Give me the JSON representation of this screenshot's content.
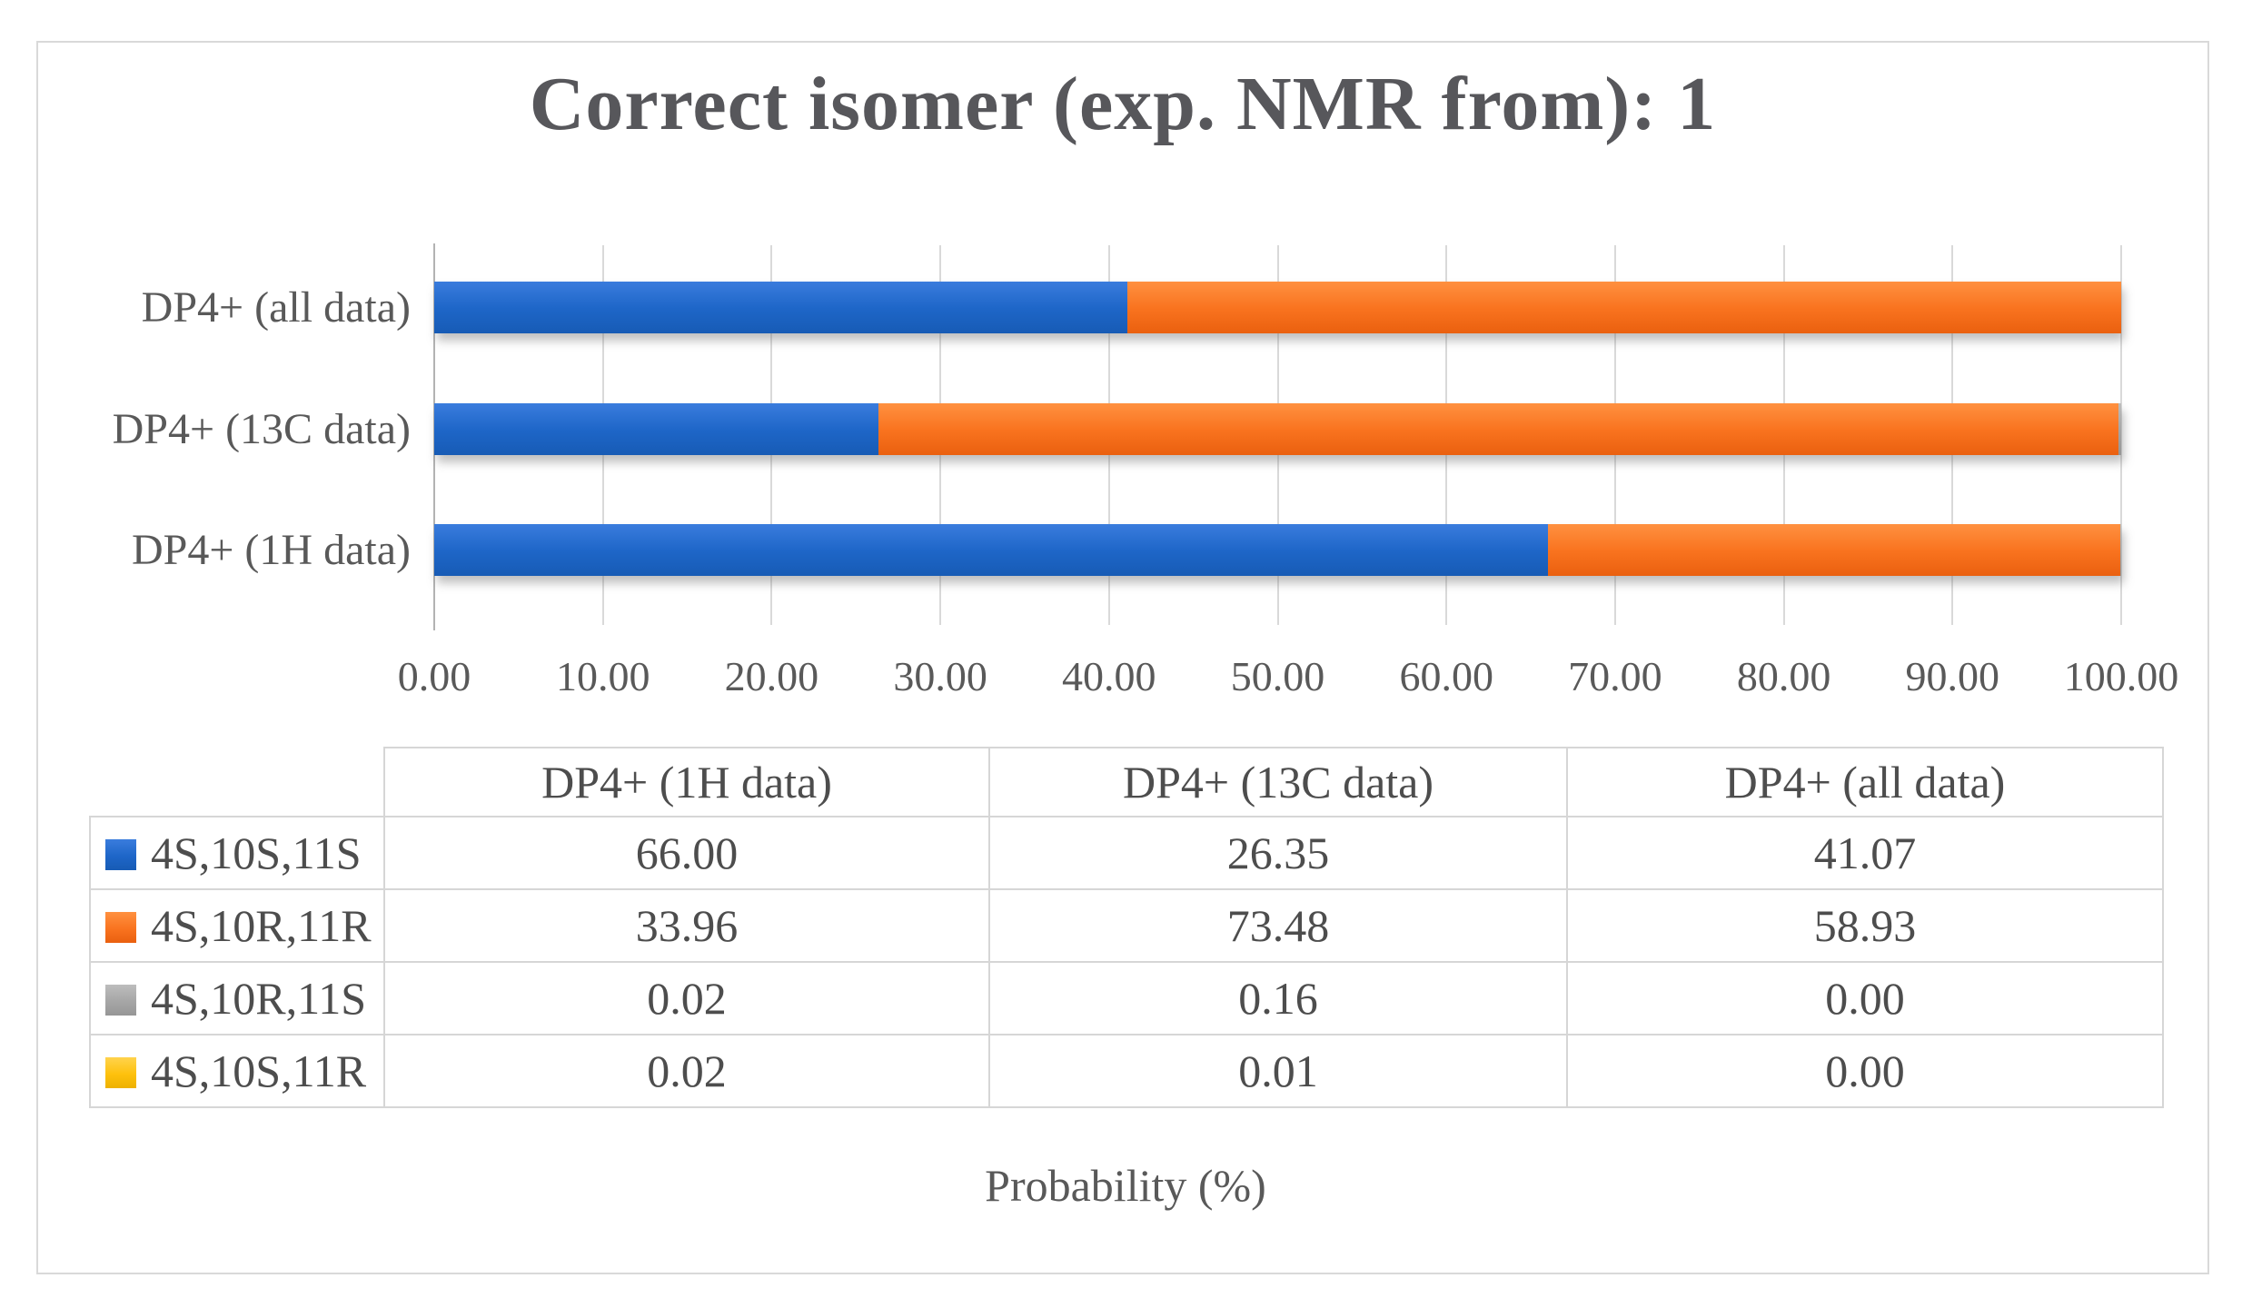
{
  "chart_data": {
    "type": "bar",
    "stacked": true,
    "horizontal": true,
    "title": "Correct isomer (exp. NMR from): 1",
    "xlabel": "Probability (%)",
    "xlim": [
      0,
      100
    ],
    "grid": true,
    "legend_position": "table-left-column",
    "xticks": [
      "0.00",
      "10.00",
      "20.00",
      "30.00",
      "40.00",
      "50.00",
      "60.00",
      "70.00",
      "80.00",
      "90.00",
      "100.00"
    ],
    "categories": [
      "DP4+ (all data)",
      "DP4+ (13C data)",
      "DP4+ (1H data)"
    ],
    "columns": [
      "DP4+ (1H data)",
      "DP4+ (13C data)",
      "DP4+ (all data)"
    ],
    "series": [
      {
        "name": "4S,10S,11S",
        "color": "#1e66c8",
        "gradient": [
          "#3a7cdd",
          "#1e66c8",
          "#175bb5"
        ],
        "values": [
          66.0,
          26.35,
          41.07
        ]
      },
      {
        "name": "4S,10R,11R",
        "color": "#f9731f",
        "gradient": [
          "#ff9140",
          "#f9731f",
          "#ea600f"
        ],
        "values": [
          33.96,
          73.48,
          58.93
        ]
      },
      {
        "name": "4S,10R,11S",
        "color": "#a6a6a6",
        "gradient": [
          "#bdbdbd",
          "#a6a6a6",
          "#969696"
        ],
        "values": [
          0.02,
          0.16,
          0.0
        ]
      },
      {
        "name": "4S,10S,11R",
        "color": "#fec10d",
        "gradient": [
          "#ffd34d",
          "#fec10d",
          "#edb100"
        ],
        "values": [
          0.02,
          0.01,
          0.0
        ]
      }
    ]
  },
  "colors": {
    "title_text": "#57575b",
    "axis_text": "#595959",
    "table_text": "#4d4d4d",
    "gridline": "#d9d9d9",
    "axis_line": "#b3b3b3",
    "table_border": "#d6d6d6",
    "panel_border": "#d9d9d9"
  }
}
